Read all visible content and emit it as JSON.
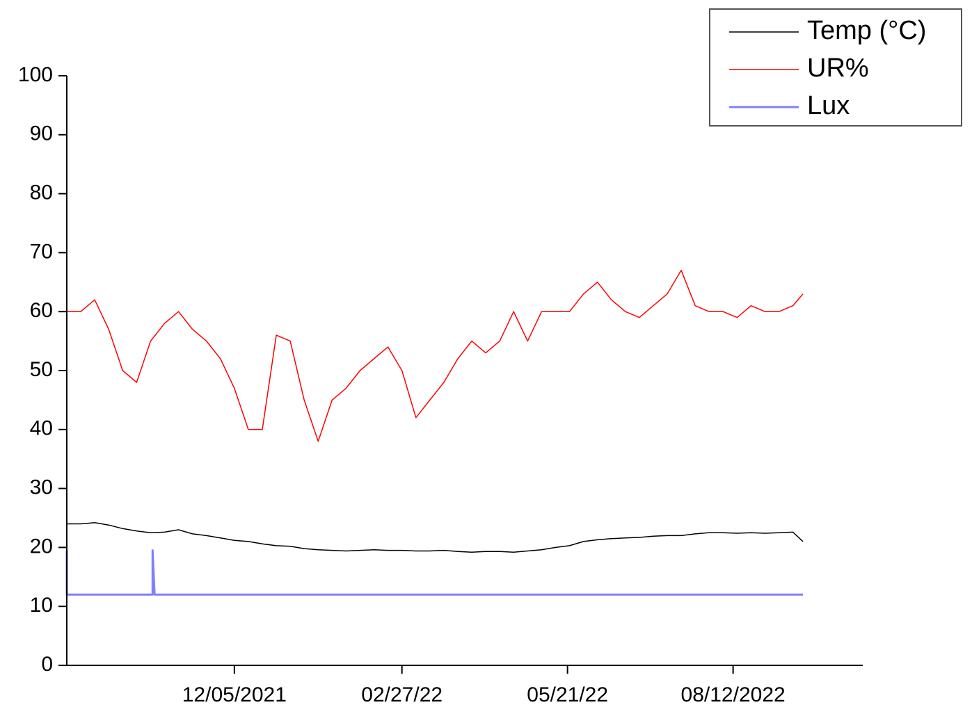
{
  "chart_data": {
    "type": "line",
    "x": [
      "2021-09-12",
      "2021-09-19",
      "2021-09-26",
      "2021-10-03",
      "2021-10-10",
      "2021-10-17",
      "2021-10-24",
      "2021-10-31",
      "2021-11-07",
      "2021-11-14",
      "2021-11-21",
      "2021-11-28",
      "2021-12-05",
      "2021-12-12",
      "2021-12-19",
      "2021-12-26",
      "2022-01-02",
      "2022-01-09",
      "2022-01-16",
      "2022-01-23",
      "2022-01-30",
      "2022-02-06",
      "2022-02-13",
      "2022-02-20",
      "2022-02-27",
      "2022-03-06",
      "2022-03-13",
      "2022-03-20",
      "2022-03-27",
      "2022-04-03",
      "2022-04-10",
      "2022-04-17",
      "2022-04-24",
      "2022-05-01",
      "2022-05-08",
      "2022-05-15",
      "2022-05-22",
      "2022-05-29",
      "2022-06-05",
      "2022-06-12",
      "2022-06-19",
      "2022-06-26",
      "2022-07-03",
      "2022-07-10",
      "2022-07-17",
      "2022-07-24",
      "2022-07-31",
      "2022-08-07",
      "2022-08-14",
      "2022-08-21",
      "2022-08-28",
      "2022-09-04",
      "2022-09-11",
      "2022-09-16"
    ],
    "series": [
      {
        "name": "Temp (°C)",
        "color": "#000000",
        "width": 1.5,
        "values": [
          24,
          24,
          24.2,
          23.8,
          23.2,
          22.8,
          22.5,
          22.6,
          23,
          22.3,
          22,
          21.6,
          21.2,
          21,
          20.6,
          20.3,
          20.2,
          19.8,
          19.6,
          19.5,
          19.4,
          19.5,
          19.6,
          19.5,
          19.5,
          19.4,
          19.4,
          19.5,
          19.3,
          19.2,
          19.3,
          19.3,
          19.2,
          19.4,
          19.6,
          20,
          20.3,
          21,
          21.3,
          21.5,
          21.6,
          21.7,
          21.9,
          22,
          22,
          22.3,
          22.5,
          22.5,
          22.4,
          22.5,
          22.4,
          22.5,
          22.6,
          21
        ]
      },
      {
        "name": "UR%",
        "color": "#ff0000",
        "width": 1.5,
        "values": [
          60,
          60,
          62,
          57,
          50,
          48,
          55,
          58,
          60,
          57,
          55,
          52,
          47,
          40,
          40,
          56,
          55,
          45,
          38,
          45,
          47,
          50,
          52,
          54,
          50,
          42,
          45,
          48,
          52,
          55,
          53,
          55,
          60,
          55,
          60,
          60,
          60,
          63,
          65,
          62,
          60,
          59,
          61,
          63,
          67,
          61,
          60,
          60,
          59,
          61,
          60,
          60,
          61,
          63
        ]
      },
      {
        "name": "Lux",
        "color": "#8080ff",
        "width": 3,
        "x": [
          "2021-09-12",
          "2021-09-12",
          "2021-09-13",
          "2021-09-13",
          "2021-10-25",
          "2021-10-25",
          "2021-10-26",
          "2021-10-26",
          "2022-09-16"
        ],
        "values": [
          19.5,
          12,
          12,
          12,
          12,
          19.5,
          12,
          12,
          12
        ]
      }
    ],
    "xlim": [
      "2021-09-12",
      "2022-10-16"
    ],
    "xticks": [
      {
        "value": "2021-12-05",
        "label": "12/05/2021"
      },
      {
        "value": "2022-02-27",
        "label": "02/27/22"
      },
      {
        "value": "2022-05-21",
        "label": "05/21/22"
      },
      {
        "value": "2022-08-12",
        "label": "08/12/2022"
      }
    ],
    "ylim": [
      0,
      100
    ],
    "yticks": [
      0,
      10,
      20,
      30,
      40,
      50,
      60,
      70,
      80,
      90,
      100
    ],
    "legend": "top-right"
  }
}
